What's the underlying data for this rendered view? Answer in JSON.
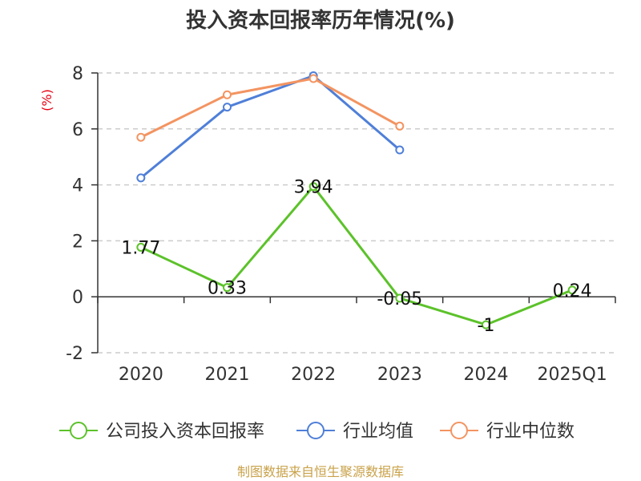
{
  "chart_data": {
    "type": "line",
    "title": "投入资本回报率历年情况(%)",
    "ylabel": "(%)",
    "categories": [
      "2020",
      "2021",
      "2022",
      "2023",
      "2024",
      "2025Q1"
    ],
    "ylim": [
      -2,
      8
    ],
    "yticks": [
      -2,
      0,
      2,
      4,
      6,
      8
    ],
    "grid": true,
    "legend_position": "bottom",
    "series": [
      {
        "name": "公司投入资本回报率",
        "color": "#5cc22a",
        "values": [
          1.77,
          0.33,
          3.94,
          -0.05,
          -1,
          0.24
        ],
        "labels": [
          "1.77",
          "0.33",
          "3.94",
          "-0.05",
          "-1",
          "0.24"
        ]
      },
      {
        "name": "行业均值",
        "color": "#4f7fd8",
        "values": [
          4.25,
          6.78,
          7.9,
          5.25,
          null,
          null
        ]
      },
      {
        "name": "行业中位数",
        "color": "#f39461",
        "values": [
          5.7,
          7.22,
          7.8,
          6.1,
          null,
          null
        ]
      }
    ]
  },
  "source": "制图数据来自恒生聚源数据库"
}
